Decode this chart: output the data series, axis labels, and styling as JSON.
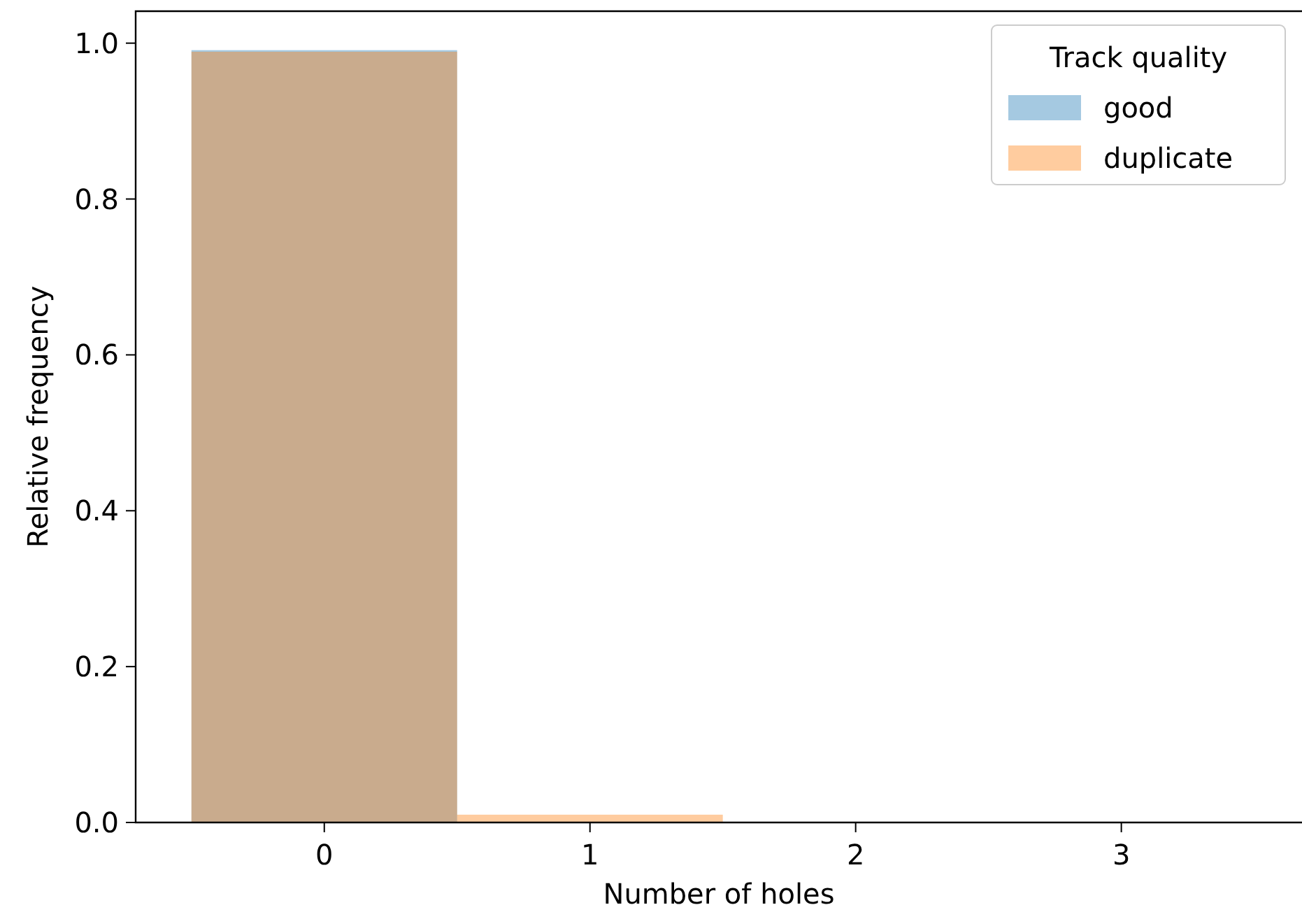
{
  "chart_data": {
    "type": "histogram",
    "xlabel": "Number of holes",
    "ylabel": "Relative frequency",
    "legend_title": "Track quality",
    "bins": [
      -0.5,
      0.5,
      1.5,
      2.5,
      3.5
    ],
    "series": [
      {
        "name": "good",
        "color": "#1f77b4",
        "values": [
          0.991,
          null,
          0,
          0
        ]
      },
      {
        "name": "duplicate",
        "color": "#ff7f0e",
        "values": [
          0.989,
          0.01,
          0,
          0
        ]
      }
    ],
    "xlim": [
      -0.71,
      3.68
    ],
    "xticks": [
      0,
      1,
      2,
      3
    ],
    "ylim": [
      0,
      1.041
    ],
    "yticks": [
      {
        "value": 0,
        "label": "0.0"
      },
      {
        "value": 0.2,
        "label": "0.2"
      },
      {
        "value": 0.4,
        "label": "0.4"
      },
      {
        "value": 0.6,
        "label": "0.6"
      },
      {
        "value": 0.8,
        "label": "0.8"
      },
      {
        "value": 1,
        "label": "1.0"
      }
    ],
    "legend": "top right",
    "grid": false
  }
}
